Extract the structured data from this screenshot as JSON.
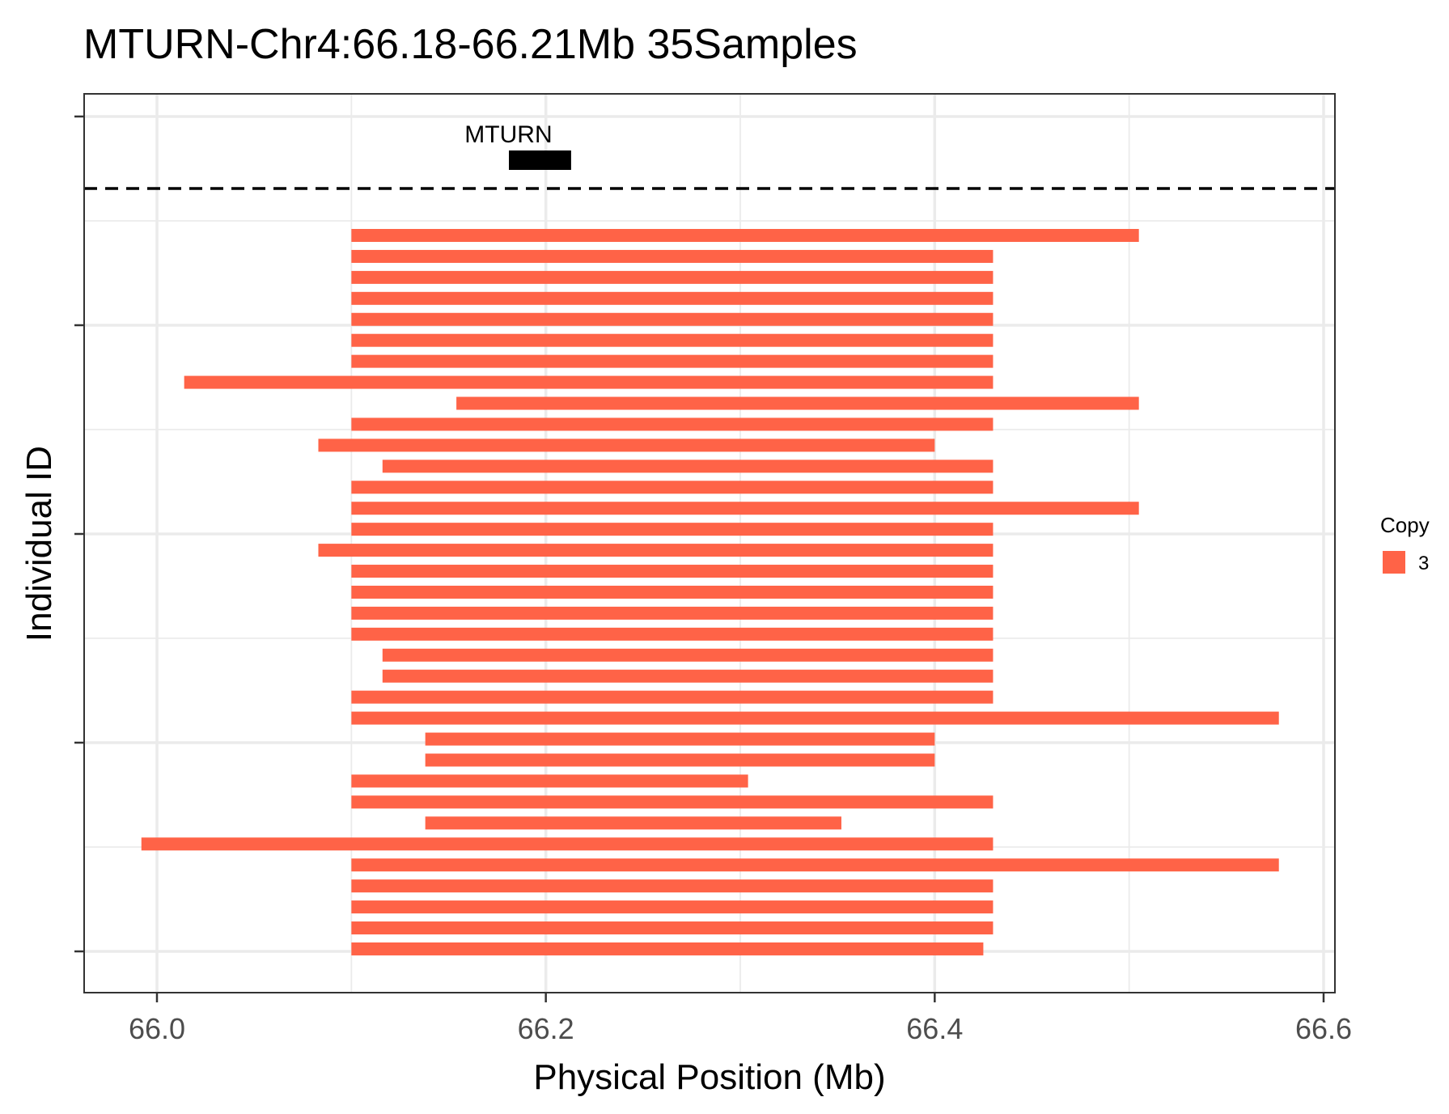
{
  "chart_data": {
    "type": "bar",
    "subtype": "horizontal-segments",
    "title": "MTURN-Chr4:66.18-66.21Mb 35Samples",
    "xlabel": "Physical Position (Mb)",
    "ylabel": "Individual ID",
    "xlim": [
      65.963,
      66.601
    ],
    "x_ticks": [
      "66.0",
      "66.2",
      "66.4",
      "66.6"
    ],
    "x_tick_values": [
      66.0,
      66.2,
      66.4,
      66.6
    ],
    "grid": true,
    "gene": {
      "name": "MTURN",
      "start": 66.181,
      "end": 66.213,
      "color": "#000000"
    },
    "legend": {
      "title": "Copy",
      "entries": [
        {
          "label": "3",
          "color": "#FF6347"
        }
      ],
      "position": "right"
    },
    "segment_color": "#FF6347",
    "series": [
      {
        "start": 66.1,
        "end": 66.505
      },
      {
        "start": 66.1,
        "end": 66.43
      },
      {
        "start": 66.1,
        "end": 66.43
      },
      {
        "start": 66.1,
        "end": 66.43
      },
      {
        "start": 66.1,
        "end": 66.43
      },
      {
        "start": 66.1,
        "end": 66.43
      },
      {
        "start": 66.1,
        "end": 66.43
      },
      {
        "start": 66.014,
        "end": 66.43
      },
      {
        "start": 66.154,
        "end": 66.505
      },
      {
        "start": 66.1,
        "end": 66.43
      },
      {
        "start": 66.083,
        "end": 66.4
      },
      {
        "start": 66.116,
        "end": 66.43
      },
      {
        "start": 66.1,
        "end": 66.43
      },
      {
        "start": 66.1,
        "end": 66.505
      },
      {
        "start": 66.1,
        "end": 66.43
      },
      {
        "start": 66.083,
        "end": 66.43
      },
      {
        "start": 66.1,
        "end": 66.43
      },
      {
        "start": 66.1,
        "end": 66.43
      },
      {
        "start": 66.1,
        "end": 66.43
      },
      {
        "start": 66.1,
        "end": 66.43
      },
      {
        "start": 66.116,
        "end": 66.43
      },
      {
        "start": 66.116,
        "end": 66.43
      },
      {
        "start": 66.1,
        "end": 66.43
      },
      {
        "start": 66.1,
        "end": 66.577
      },
      {
        "start": 66.138,
        "end": 66.4
      },
      {
        "start": 66.138,
        "end": 66.4
      },
      {
        "start": 66.1,
        "end": 66.304
      },
      {
        "start": 66.1,
        "end": 66.43
      },
      {
        "start": 66.138,
        "end": 66.352
      },
      {
        "start": 65.992,
        "end": 66.43
      },
      {
        "start": 66.1,
        "end": 66.577
      },
      {
        "start": 66.1,
        "end": 66.43
      },
      {
        "start": 66.1,
        "end": 66.43
      },
      {
        "start": 66.1,
        "end": 66.43
      },
      {
        "start": 66.1,
        "end": 66.425
      }
    ]
  }
}
